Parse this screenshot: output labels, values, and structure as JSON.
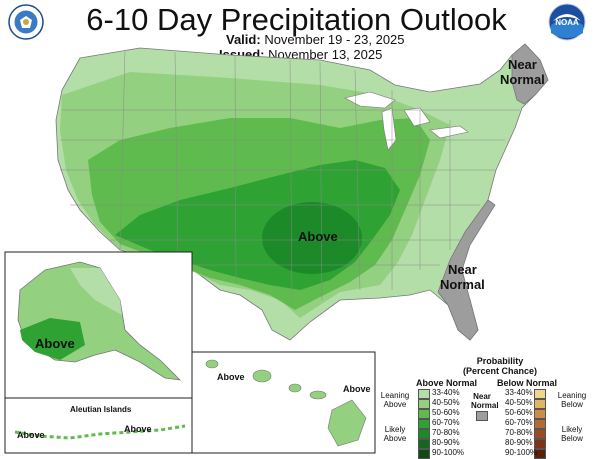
{
  "title": "6-10 Day Precipitation Outlook",
  "valid_label": "Valid:",
  "valid_value": "November 19 - 23, 2025",
  "issued_label": "Issued:",
  "issued_value": "November 13, 2025",
  "logos": {
    "left": "doc-seal-icon",
    "right": "noaa-logo-icon",
    "noaa_text": "NOAA"
  },
  "map_labels": {
    "near_normal_ne_1": "Near",
    "near_normal_ne_2": "Normal",
    "near_normal_se_1": "Near",
    "near_normal_se_2": "Normal",
    "above_central": "Above",
    "above_alaska": "Above",
    "above_hawaii_1": "Above",
    "above_hawaii_2": "Above",
    "above_aleutian_1": "Above",
    "above_aleutian_2": "Above",
    "aleutian_islands": "Aleutian Islands"
  },
  "legend": {
    "title_1": "Probability",
    "title_2": "(Percent Chance)",
    "above_header": "Above Normal",
    "below_header": "Below Normal",
    "near_1": "Near",
    "near_2": "Normal",
    "leaning_above_1": "Leaning",
    "leaning_above_2": "Above",
    "likely_above_1": "Likely",
    "likely_above_2": "Above",
    "leaning_below_1": "Leaning",
    "leaning_below_2": "Below",
    "likely_below_1": "Likely",
    "likely_below_2": "Below",
    "above_bins": [
      {
        "range": "33-40%",
        "color": "#b3dea8"
      },
      {
        "range": "40-50%",
        "color": "#93d07f"
      },
      {
        "range": "50-60%",
        "color": "#5fbb4e"
      },
      {
        "range": "60-70%",
        "color": "#2fa234"
      },
      {
        "range": "70-80%",
        "color": "#1d8a2a"
      },
      {
        "range": "80-90%",
        "color": "#17661d"
      },
      {
        "range": "90-100%",
        "color": "#0f4a12"
      }
    ],
    "below_bins": [
      {
        "range": "33-40%",
        "color": "#f0d58e"
      },
      {
        "range": "40-50%",
        "color": "#e1b566"
      },
      {
        "range": "50-60%",
        "color": "#cc8e45"
      },
      {
        "range": "60-70%",
        "color": "#b36b33"
      },
      {
        "range": "70-80%",
        "color": "#9a4c27"
      },
      {
        "range": "80-90%",
        "color": "#7c3316"
      },
      {
        "range": "90-100%",
        "color": "#5a2009"
      }
    ],
    "near_color": "#9d9d9d"
  }
}
